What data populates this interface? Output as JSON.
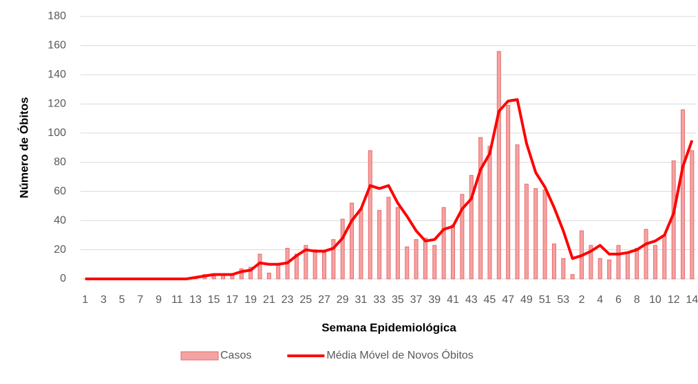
{
  "chart_data": {
    "type": "bar",
    "xlabel": "Semana Epidemiológica",
    "ylabel": "Número de Óbitos",
    "categories": [
      "1",
      null,
      "3",
      null,
      "5",
      null,
      "7",
      null,
      "9",
      null,
      "11",
      null,
      "13",
      null,
      "15",
      null,
      "17",
      null,
      "19",
      null,
      "21",
      null,
      "23",
      null,
      "25",
      null,
      "27",
      null,
      "29",
      null,
      "31",
      null,
      "33",
      null,
      "35",
      null,
      "37",
      null,
      "39",
      null,
      "41",
      null,
      "43",
      null,
      "45",
      null,
      "47",
      null,
      "49",
      null,
      "51",
      null,
      "53",
      null,
      "2",
      null,
      "4",
      null,
      "6",
      null,
      "8",
      null,
      "10",
      null,
      "12",
      null,
      "14"
    ],
    "series": [
      {
        "name": "Casos",
        "type": "bar",
        "color": "#f4a3a3",
        "edge": "#e86a6a",
        "values": [
          0,
          0,
          0,
          0,
          0,
          0,
          0,
          0,
          0,
          0,
          0,
          0,
          1,
          3,
          2,
          3,
          3,
          7,
          8,
          17,
          4,
          10,
          21,
          17,
          23,
          20,
          18,
          27,
          41,
          52,
          48,
          88,
          47,
          56,
          49,
          22,
          27,
          28,
          23,
          49,
          37,
          58,
          71,
          97,
          91,
          156,
          119,
          92,
          65,
          62,
          61,
          24,
          14,
          3,
          33,
          23,
          14,
          13,
          23,
          18,
          21,
          34,
          23,
          30,
          81,
          116,
          88
        ]
      },
      {
        "name": "Média Móvel de Novos Óbitos",
        "type": "line",
        "color": "#ff0000",
        "values": [
          0,
          0,
          0,
          0,
          0,
          0,
          0,
          0,
          0,
          0,
          0,
          0,
          1,
          2,
          3,
          3,
          3,
          5,
          6,
          11,
          10,
          10,
          11,
          16,
          20,
          19,
          19,
          21,
          28,
          40,
          48,
          64,
          62,
          64,
          52,
          43,
          33,
          26,
          27,
          34,
          36,
          48,
          55,
          75,
          86,
          115,
          122,
          123,
          93,
          73,
          63,
          49,
          33,
          14,
          16,
          19,
          23,
          17,
          17,
          18,
          20,
          24,
          26,
          30,
          45,
          77,
          95
        ]
      }
    ],
    "ylim": [
      0,
      180
    ],
    "yticks": [
      0,
      20,
      40,
      60,
      80,
      100,
      120,
      140,
      160,
      180
    ],
    "grid": true,
    "legend": "bottom"
  }
}
